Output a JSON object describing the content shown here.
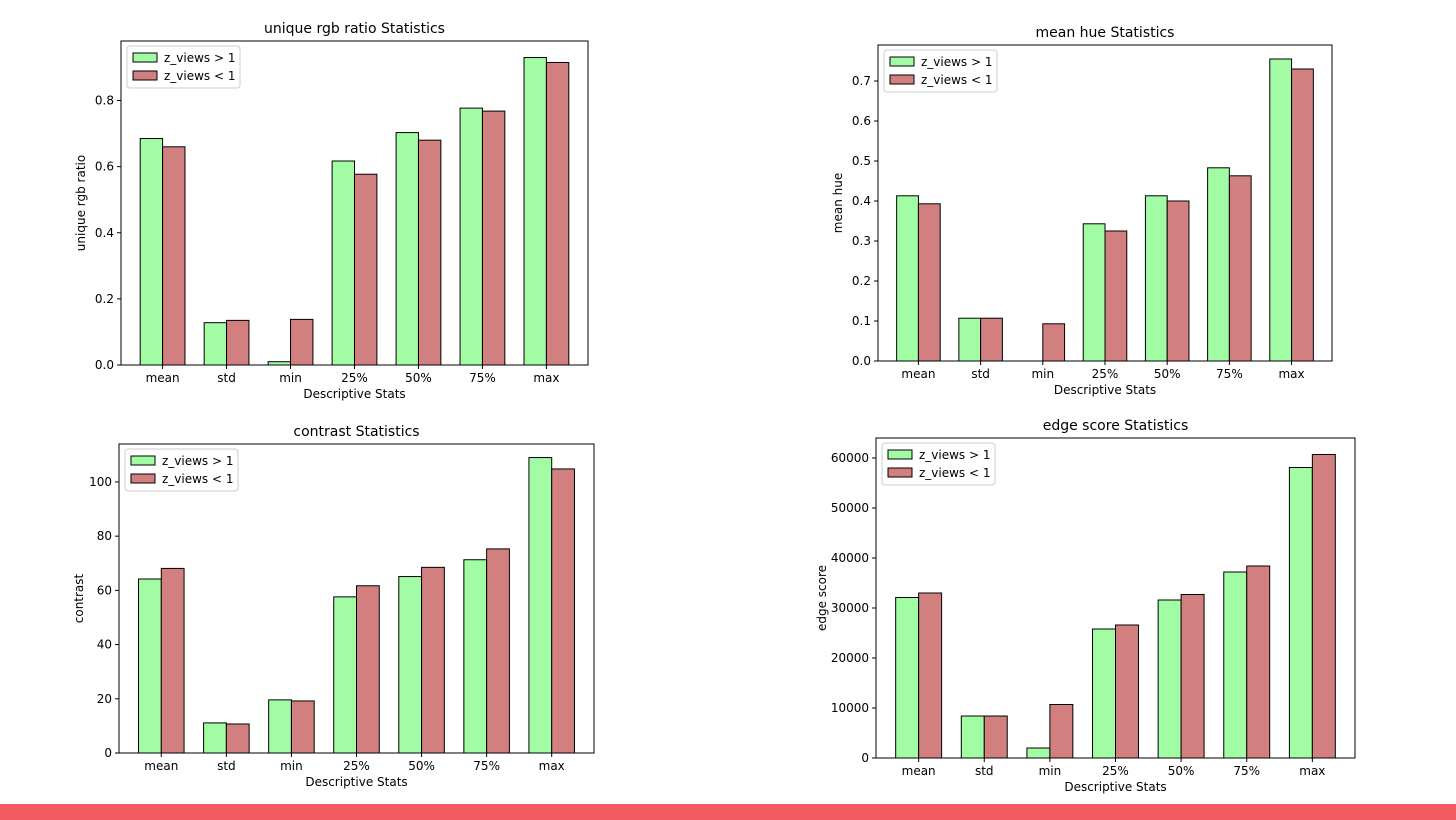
{
  "colors": {
    "series_a": "#a2fca4",
    "series_b": "#d2807f",
    "edge": "#000000",
    "bottom_bar": "#f15a60"
  },
  "chart_data": [
    {
      "type": "bar",
      "title": "unique rgb ratio Statistics",
      "xlabel": "Descriptive Stats",
      "ylabel": "unique rgb ratio",
      "categories": [
        "mean",
        "std",
        "min",
        "25%",
        "50%",
        "75%",
        "max"
      ],
      "ylim": [
        0,
        0.98
      ],
      "yticks": [
        0,
        0.2,
        0.4,
        0.6,
        0.8
      ],
      "ytick_labels": [
        "0.0",
        "0.2",
        "0.4",
        "0.6",
        "0.8"
      ],
      "legend_position": "upper-left",
      "series": [
        {
          "name": "z_views > 1",
          "values": [
            0.685,
            0.128,
            0.01,
            0.617,
            0.703,
            0.777,
            0.93
          ]
        },
        {
          "name": "z_views < 1",
          "values": [
            0.66,
            0.135,
            0.138,
            0.577,
            0.68,
            0.768,
            0.915
          ]
        }
      ]
    },
    {
      "type": "bar",
      "title": "mean hue Statistics",
      "xlabel": "Descriptive Stats",
      "ylabel": "mean hue",
      "categories": [
        "mean",
        "std",
        "min",
        "25%",
        "50%",
        "75%",
        "max"
      ],
      "ylim": [
        0,
        0.79
      ],
      "yticks": [
        0,
        0.1,
        0.2,
        0.3,
        0.4,
        0.5,
        0.6,
        0.7
      ],
      "ytick_labels": [
        "0.0",
        "0.1",
        "0.2",
        "0.3",
        "0.4",
        "0.5",
        "0.6",
        "0.7"
      ],
      "legend_position": "upper-left",
      "series": [
        {
          "name": "z_views > 1",
          "values": [
            0.413,
            0.107,
            0.0,
            0.343,
            0.413,
            0.483,
            0.755
          ]
        },
        {
          "name": "z_views < 1",
          "values": [
            0.393,
            0.107,
            0.093,
            0.325,
            0.4,
            0.463,
            0.73
          ]
        }
      ]
    },
    {
      "type": "bar",
      "title": "contrast Statistics",
      "xlabel": "Descriptive Stats",
      "ylabel": "contrast",
      "categories": [
        "mean",
        "std",
        "min",
        "25%",
        "50%",
        "75%",
        "max"
      ],
      "ylim": [
        0,
        114
      ],
      "yticks": [
        0,
        20,
        40,
        60,
        80,
        100
      ],
      "ytick_labels": [
        "0",
        "20",
        "40",
        "60",
        "80",
        "100"
      ],
      "legend_position": "upper-left",
      "series": [
        {
          "name": "z_views > 1",
          "values": [
            64.2,
            11.1,
            19.6,
            57.6,
            65.1,
            71.3,
            109
          ]
        },
        {
          "name": "z_views < 1",
          "values": [
            68.1,
            10.7,
            19.2,
            61.7,
            68.5,
            75.3,
            104.8
          ]
        }
      ]
    },
    {
      "type": "bar",
      "title": "edge score Statistics",
      "xlabel": "Descriptive Stats",
      "ylabel": "edge score",
      "categories": [
        "mean",
        "std",
        "min",
        "25%",
        "50%",
        "75%",
        "max"
      ],
      "ylim": [
        0,
        64000
      ],
      "yticks": [
        0,
        10000,
        20000,
        30000,
        40000,
        50000,
        60000
      ],
      "ytick_labels": [
        "0",
        "10000",
        "20000",
        "30000",
        "40000",
        "50000",
        "60000"
      ],
      "legend_position": "upper-left",
      "series": [
        {
          "name": "z_views > 1",
          "values": [
            32100,
            8400,
            2000,
            25800,
            31600,
            37200,
            58100
          ]
        },
        {
          "name": "z_views < 1",
          "values": [
            33000,
            8400,
            10700,
            26600,
            32700,
            38400,
            60700
          ]
        }
      ]
    }
  ]
}
